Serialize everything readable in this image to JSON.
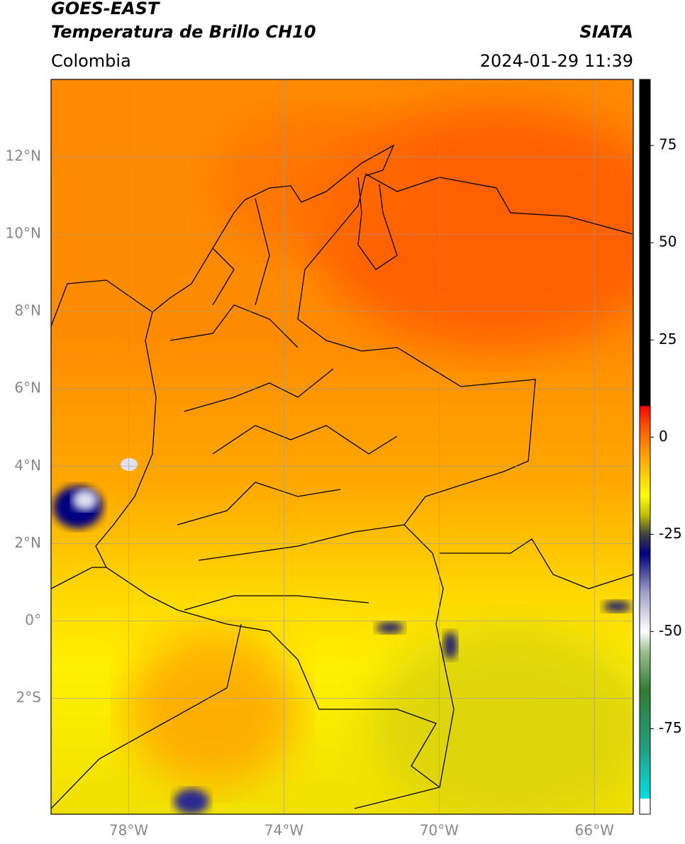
{
  "header": {
    "title": "GOES-EAST",
    "subtitle": "Temperatura de Brillo CH10",
    "source": "SIATA",
    "region": "Colombia",
    "datetime": "2024-01-29 11:39"
  },
  "map": {
    "xlim": [
      -80,
      -65
    ],
    "ylim": [
      -5,
      14
    ],
    "grid": true,
    "xticks": [
      {
        "value": -78,
        "label": "78°W"
      },
      {
        "value": -74,
        "label": "74°W"
      },
      {
        "value": -70,
        "label": "70°W"
      },
      {
        "value": -66,
        "label": "66°W"
      }
    ],
    "yticks": [
      {
        "value": 12,
        "label": "12°N"
      },
      {
        "value": 10,
        "label": "10°N"
      },
      {
        "value": 8,
        "label": "8°N"
      },
      {
        "value": 6,
        "label": "6°N"
      },
      {
        "value": 4,
        "label": "4°N"
      },
      {
        "value": 2,
        "label": "2°N"
      },
      {
        "value": 0,
        "label": "0°"
      },
      {
        "value": -2,
        "label": "2°S"
      }
    ]
  },
  "colorbar": {
    "ylim": [
      -97,
      92
    ],
    "yticks": [
      75,
      50,
      25,
      0,
      -25,
      -50,
      -75
    ],
    "colormap": [
      {
        "value": -97,
        "color": "#ffffff"
      },
      {
        "value": -93,
        "color": "#ffffff"
      },
      {
        "value": -93,
        "color": "#00e0e0"
      },
      {
        "value": -80,
        "color": "#20a080"
      },
      {
        "value": -65,
        "color": "#2e7d32"
      },
      {
        "value": -55,
        "color": "#a0c090"
      },
      {
        "value": -50,
        "color": "#ffffff"
      },
      {
        "value": -40,
        "color": "#a0a0c8"
      },
      {
        "value": -30,
        "color": "#000080"
      },
      {
        "value": -25,
        "color": "#404040"
      },
      {
        "value": -20,
        "color": "#c0c000"
      },
      {
        "value": -15,
        "color": "#ffff00"
      },
      {
        "value": -10,
        "color": "#ffd000"
      },
      {
        "value": -3,
        "color": "#ff9000"
      },
      {
        "value": 3,
        "color": "#ff5000"
      },
      {
        "value": 8,
        "color": "#ff0000"
      },
      {
        "value": 8,
        "color": "#000000"
      },
      {
        "value": 92,
        "color": "#000000"
      }
    ]
  }
}
